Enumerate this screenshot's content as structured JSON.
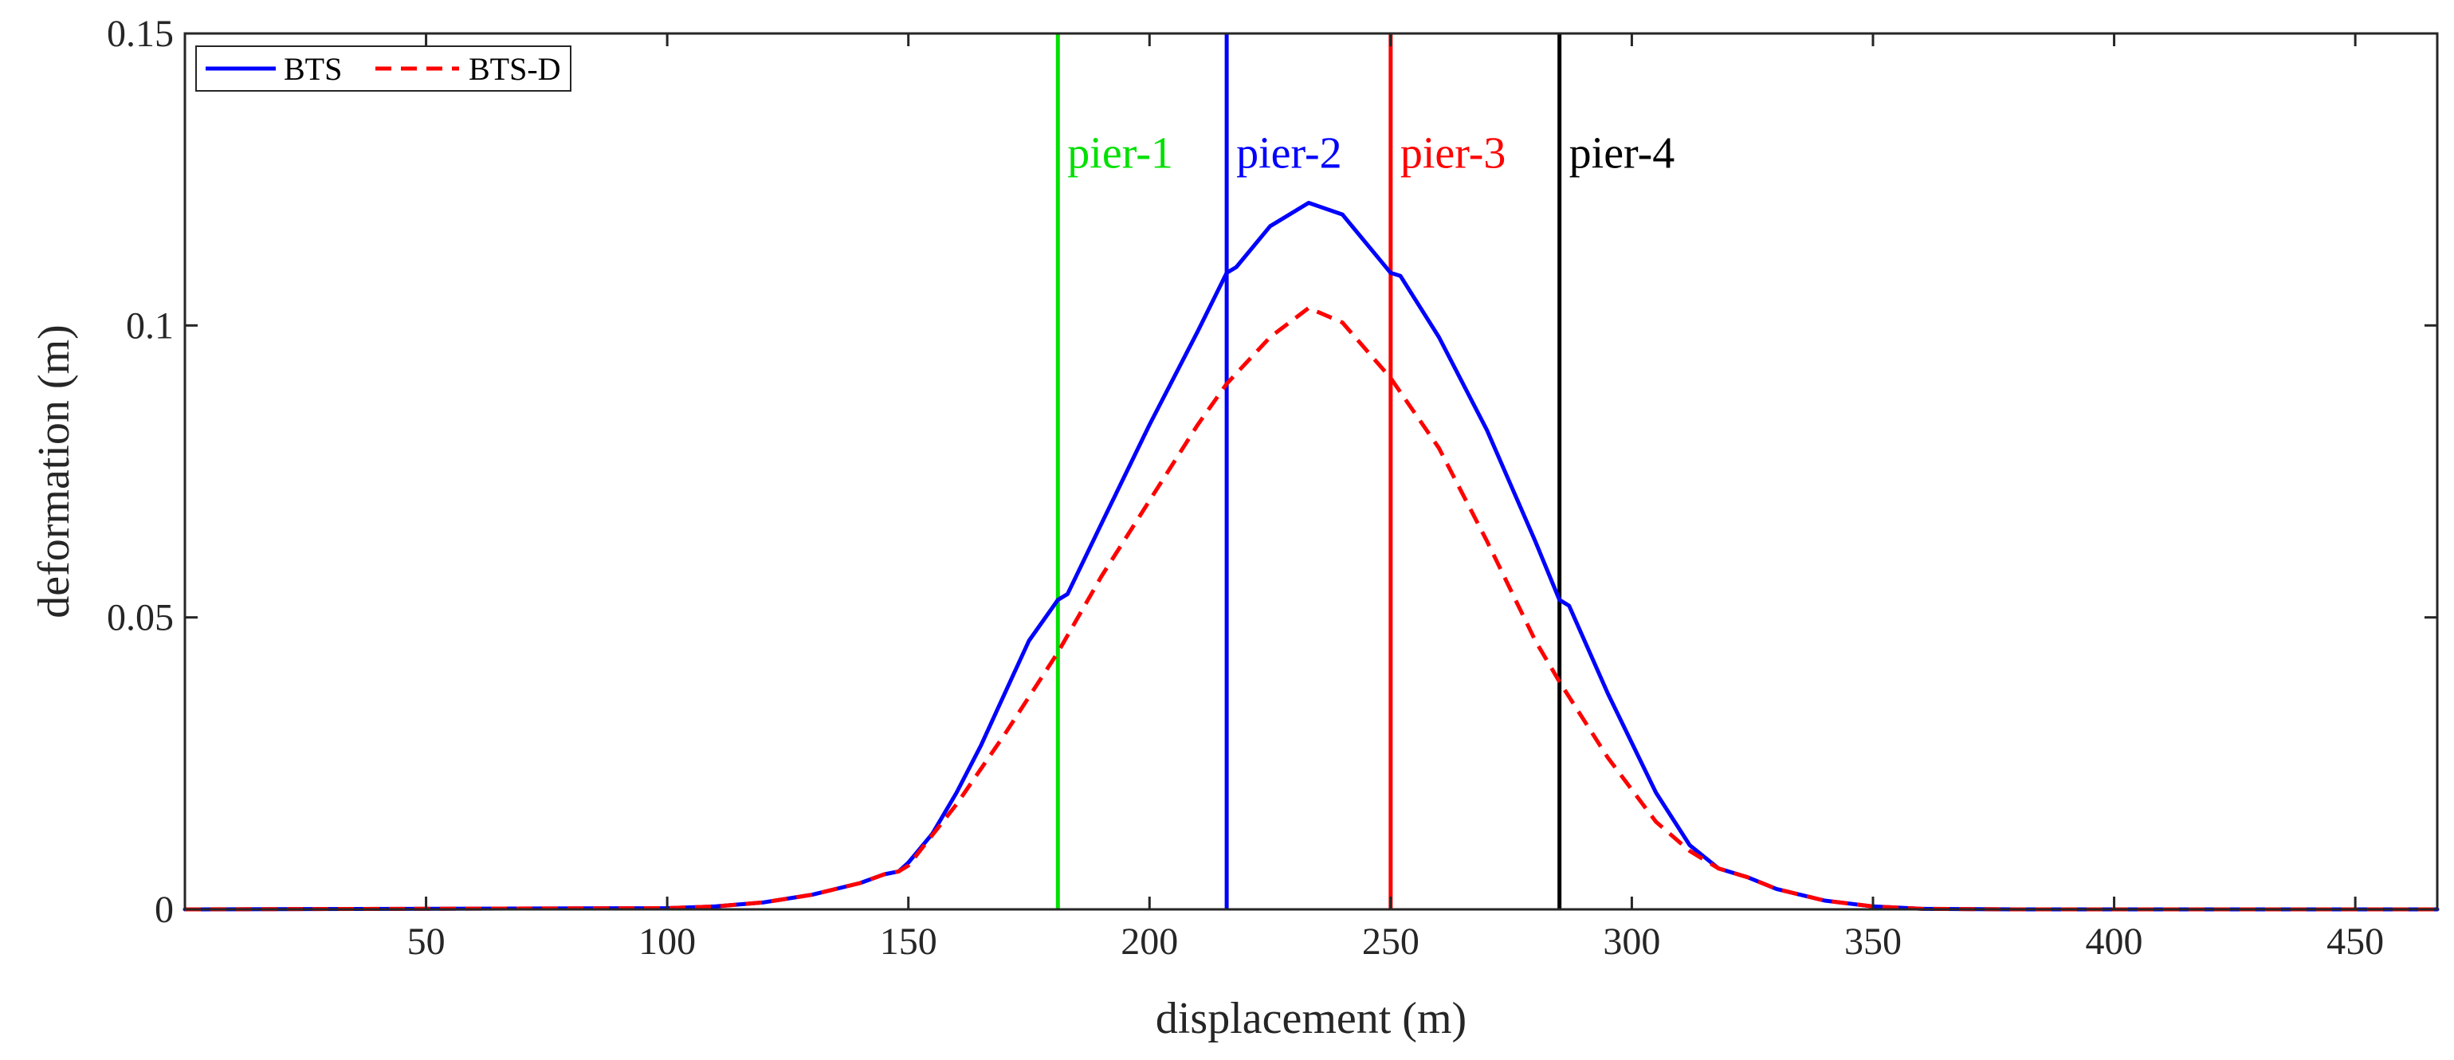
{
  "chart_data": {
    "type": "line",
    "title": "",
    "xlabel": "displacement (m)",
    "ylabel": "deformation (m)",
    "xlim": [
      0,
      467
    ],
    "ylim": [
      0,
      0.15
    ],
    "x_ticks": [
      50,
      100,
      150,
      200,
      250,
      300,
      350,
      400,
      450
    ],
    "x_tick_labels": [
      "50",
      "100",
      "150",
      "200",
      "250",
      "300",
      "350",
      "400",
      "450"
    ],
    "y_ticks": [
      0,
      0.05,
      0.1,
      0.15
    ],
    "y_tick_labels": [
      "0",
      "0.05",
      "0.1",
      "0.15"
    ],
    "grid": false,
    "legend_position": "top-left",
    "series": [
      {
        "name": "BTS",
        "color": "#0000ff",
        "style": "solid",
        "x": [
          0,
          100,
          110,
          120,
          130,
          140,
          145,
          148,
          150,
          155,
          160,
          165,
          170,
          175,
          181,
          183,
          190,
          200,
          210,
          216,
          218,
          225,
          233,
          240,
          248,
          250,
          252,
          260,
          270,
          280,
          285,
          287,
          295,
          305,
          312,
          318,
          324,
          330,
          340,
          350,
          360,
          380,
          467
        ],
        "y": [
          0,
          0.0002,
          0.0005,
          0.0012,
          0.0025,
          0.0045,
          0.006,
          0.0065,
          0.008,
          0.013,
          0.02,
          0.028,
          0.037,
          0.046,
          0.053,
          0.054,
          0.066,
          0.083,
          0.099,
          0.109,
          0.11,
          0.117,
          0.121,
          0.119,
          0.111,
          0.109,
          0.1085,
          0.098,
          0.082,
          0.063,
          0.053,
          0.052,
          0.037,
          0.02,
          0.011,
          0.007,
          0.0055,
          0.0035,
          0.0015,
          0.0005,
          0.0001,
          0,
          0
        ]
      },
      {
        "name": "BTS-D",
        "color": "#ff0000",
        "style": "dashed",
        "x": [
          0,
          100,
          110,
          120,
          130,
          140,
          145,
          148,
          150,
          160,
          170,
          181,
          190,
          200,
          210,
          216,
          225,
          233,
          240,
          250,
          260,
          270,
          280,
          285,
          295,
          305,
          312,
          318,
          324,
          330,
          340,
          350,
          360,
          380,
          467
        ],
        "y": [
          0,
          0.0002,
          0.0005,
          0.0012,
          0.0025,
          0.0045,
          0.006,
          0.0065,
          0.0075,
          0.018,
          0.03,
          0.044,
          0.057,
          0.07,
          0.083,
          0.09,
          0.098,
          0.103,
          0.1005,
          0.091,
          0.079,
          0.063,
          0.046,
          0.039,
          0.026,
          0.015,
          0.01,
          0.007,
          0.0055,
          0.0035,
          0.0015,
          0.0005,
          0.0001,
          0,
          0
        ]
      }
    ],
    "vertical_lines": [
      {
        "name": "pier-1",
        "x": 181,
        "color": "#00e000"
      },
      {
        "name": "pier-2",
        "x": 216,
        "color": "#0000ff"
      },
      {
        "name": "pier-3",
        "x": 250,
        "color": "#ff0000"
      },
      {
        "name": "pier-4",
        "x": 285,
        "color": "#000000"
      }
    ],
    "pier_label_y": 0.127
  }
}
